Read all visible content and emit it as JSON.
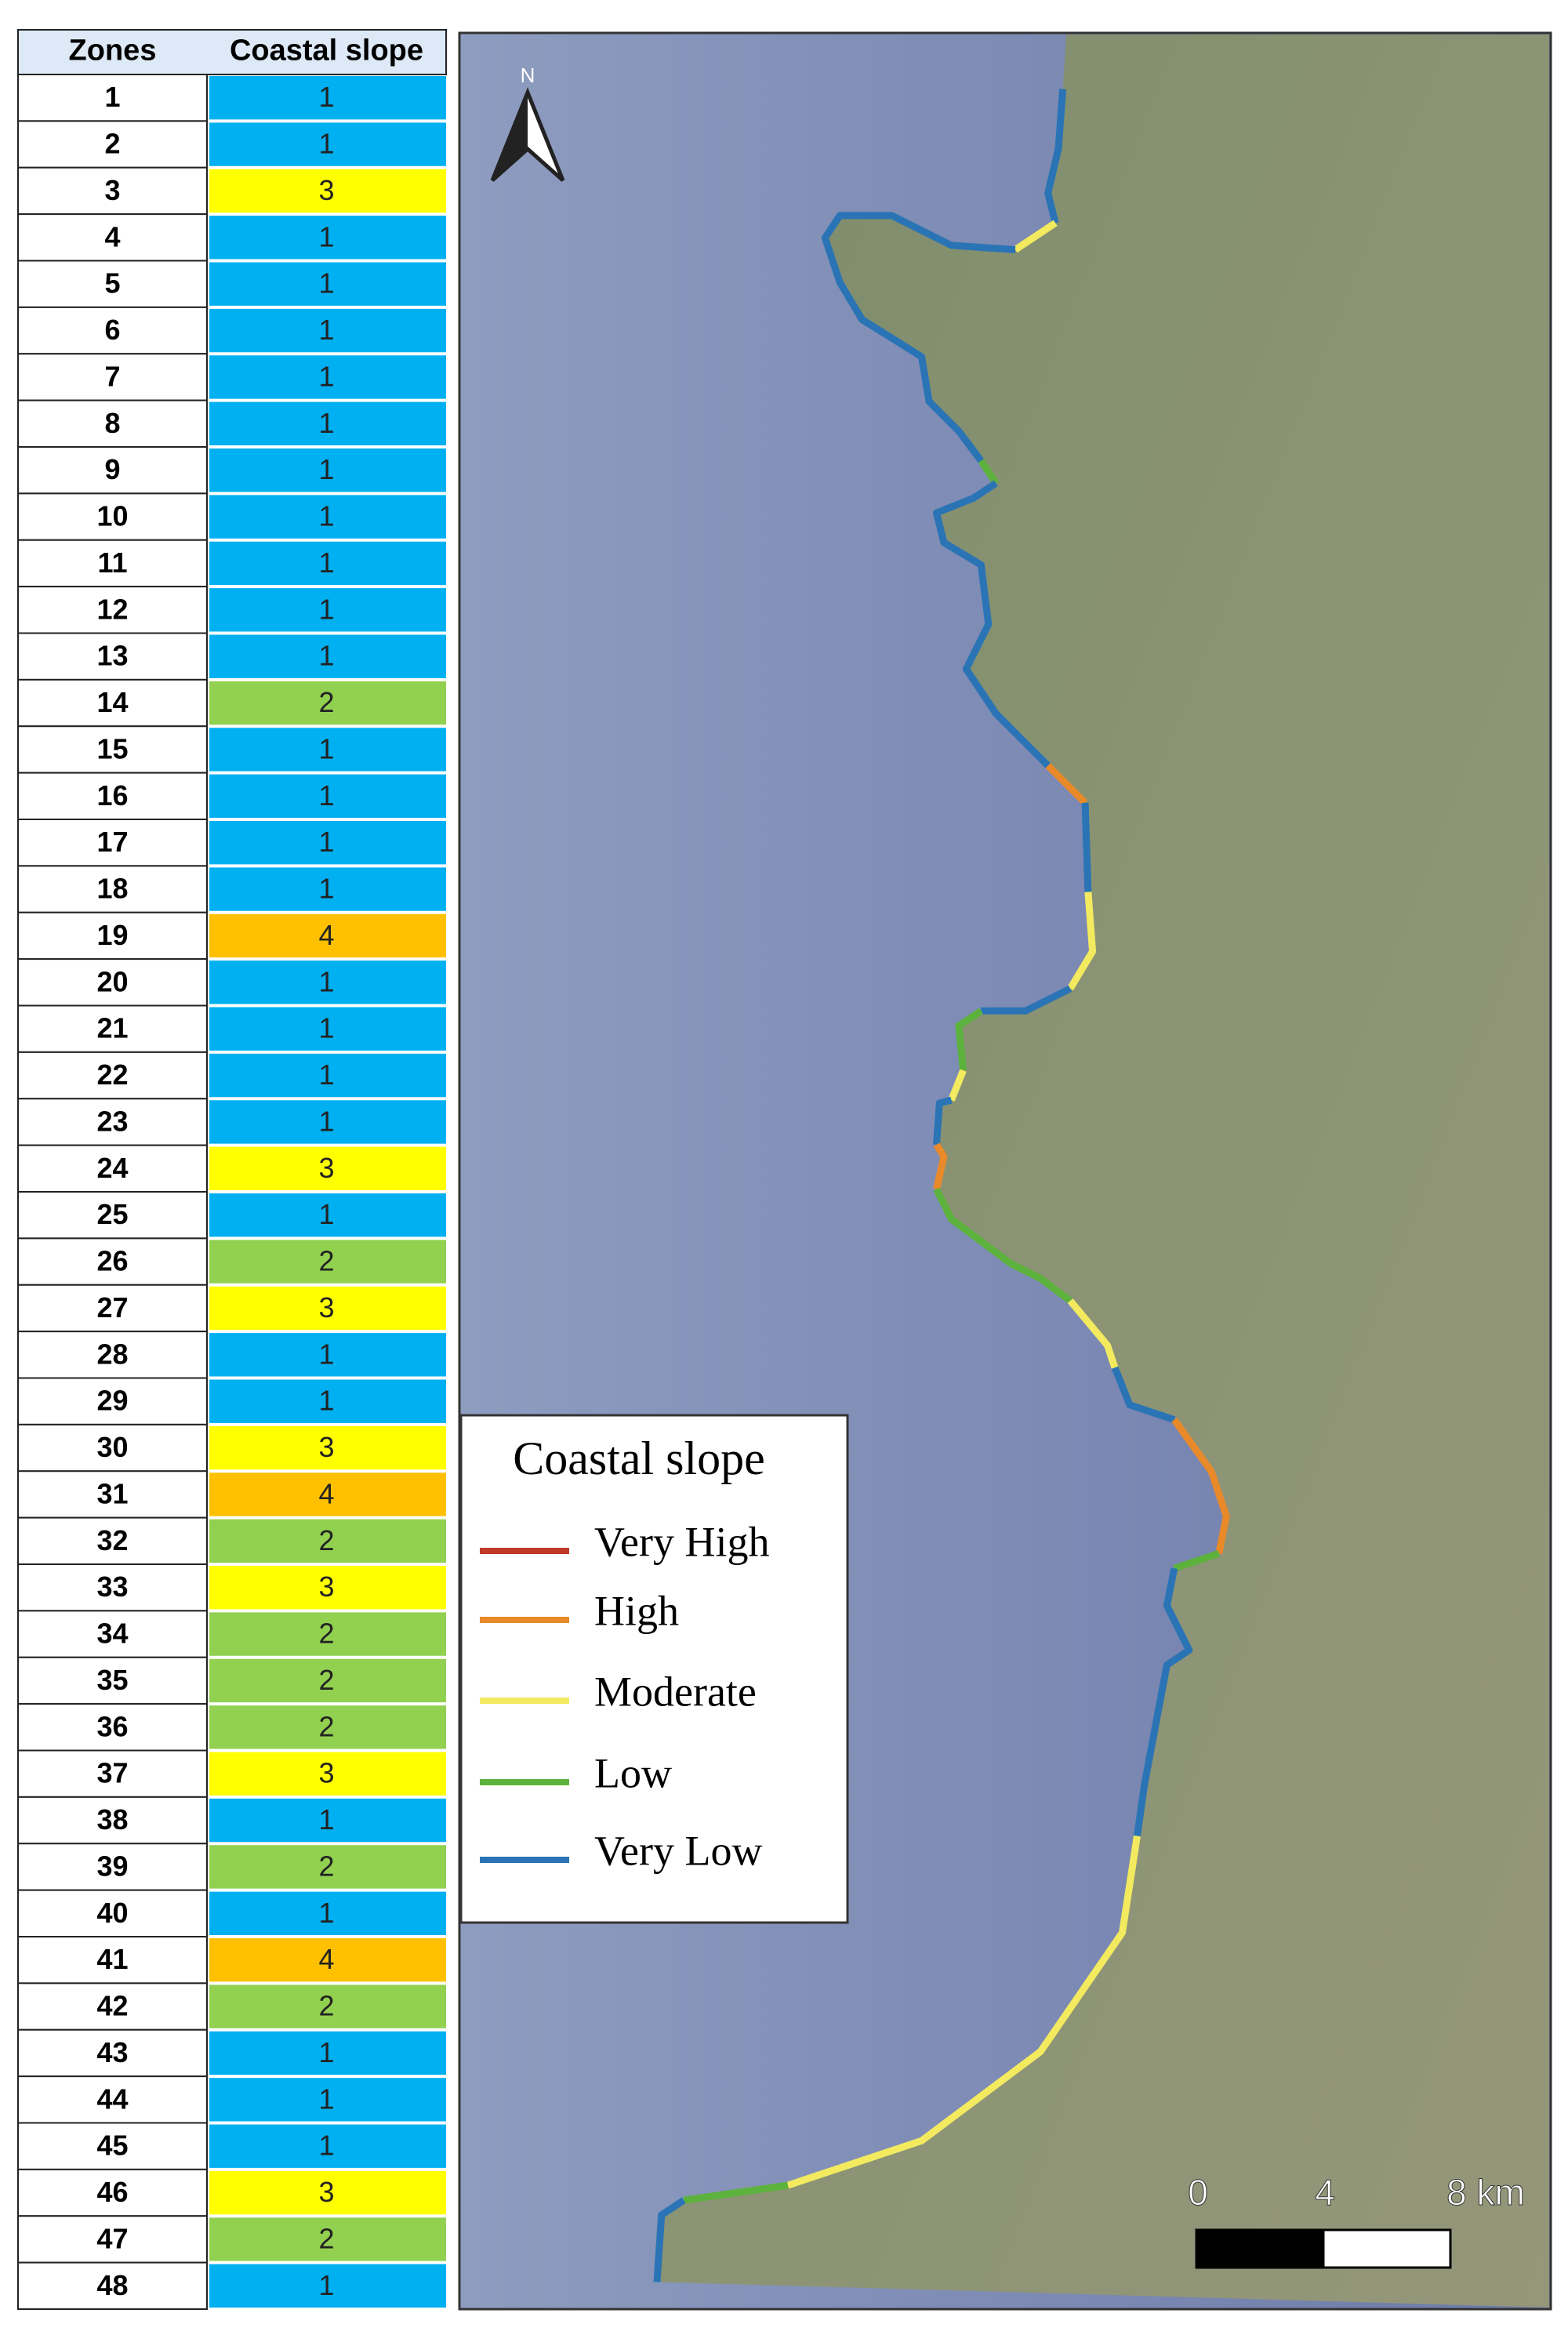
{
  "table": {
    "headers": [
      "Zones",
      "Coastal slope"
    ],
    "rows": [
      [
        "1",
        "1"
      ],
      [
        "2",
        "1"
      ],
      [
        "3",
        "3"
      ],
      [
        "4",
        "1"
      ],
      [
        "5",
        "1"
      ],
      [
        "6",
        "1"
      ],
      [
        "7",
        "1"
      ],
      [
        "8",
        "1"
      ],
      [
        "9",
        "1"
      ],
      [
        "10",
        "1"
      ],
      [
        "11",
        "1"
      ],
      [
        "12",
        "1"
      ],
      [
        "13",
        "1"
      ],
      [
        "14",
        "2"
      ],
      [
        "15",
        "1"
      ],
      [
        "16",
        "1"
      ],
      [
        "17",
        "1"
      ],
      [
        "18",
        "1"
      ],
      [
        "19",
        "4"
      ],
      [
        "20",
        "1"
      ],
      [
        "21",
        "1"
      ],
      [
        "22",
        "1"
      ],
      [
        "23",
        "1"
      ],
      [
        "24",
        "3"
      ],
      [
        "25",
        "1"
      ],
      [
        "26",
        "2"
      ],
      [
        "27",
        "3"
      ],
      [
        "28",
        "1"
      ],
      [
        "29",
        "1"
      ],
      [
        "30",
        "3"
      ],
      [
        "31",
        "4"
      ],
      [
        "32",
        "2"
      ],
      [
        "33",
        "3"
      ],
      [
        "34",
        "2"
      ],
      [
        "35",
        "2"
      ],
      [
        "36",
        "2"
      ],
      [
        "37",
        "3"
      ],
      [
        "38",
        "1"
      ],
      [
        "39",
        "2"
      ],
      [
        "40",
        "1"
      ],
      [
        "41",
        "4"
      ],
      [
        "42",
        "2"
      ],
      [
        "43",
        "1"
      ],
      [
        "44",
        "1"
      ],
      [
        "45",
        "1"
      ],
      [
        "46",
        "3"
      ],
      [
        "47",
        "2"
      ],
      [
        "48",
        "1"
      ]
    ],
    "slope_colors": {
      "1": "#00b0f0",
      "2": "#92d050",
      "3": "#ffff00",
      "4": "#ffc000"
    }
  },
  "map": {
    "north": "N",
    "legend": {
      "title": "Coastal slope",
      "entries": [
        {
          "label": "Very High",
          "color": "#c0392b"
        },
        {
          "label": "High",
          "color": "#e8892a"
        },
        {
          "label": "Moderate",
          "color": "#f3ea5f"
        },
        {
          "label": "Low",
          "color": "#5cb23c"
        },
        {
          "label": "Very Low",
          "color": "#2a74b5"
        }
      ]
    },
    "scale": [
      "0",
      "4",
      "8 km"
    ]
  }
}
